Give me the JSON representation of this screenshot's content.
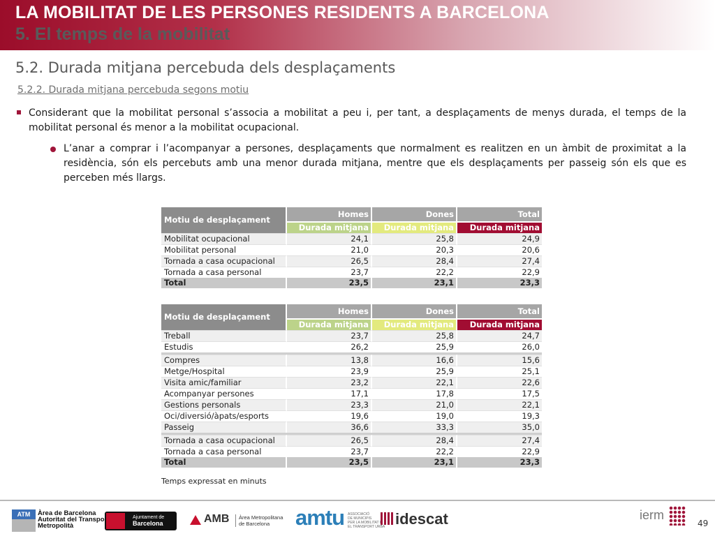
{
  "header": {
    "title_line1": "LA MOBILITAT DE LES PERSONES RESIDENTS A BARCELONA",
    "title_line2": "5. El temps de la mobilitat"
  },
  "section": {
    "title": "5.2. Durada mitjana percebuda dels desplaçaments",
    "subtitle": "5.2.2. Durada mitjana percebuda segons motiu"
  },
  "bullets": [
    "Considerant que la mobilitat personal s’associa a mobilitat a peu i, per tant, a desplaçaments de menys durada, el temps de la mobilitat personal és menor a la mobilitat ocupacional.",
    "L’anar a comprar i l’acompanyar a persones, desplaçaments que normalment es realitzen en un àmbit de proximitat a la residència, són els percebuts amb una menor durada mitjana, mentre que els desplaçaments per passeig són els que es perceben més llargs."
  ],
  "table_header": {
    "motiu": "Motiu de desplaçament",
    "homes": "Homes",
    "dones": "Dones",
    "total": "Total",
    "sub": "Durada mitjana"
  },
  "table1": {
    "rows": [
      {
        "label": "Mobilitat ocupacional",
        "homes": "24,1",
        "dones": "25,8",
        "total": "24,9"
      },
      {
        "label": "Mobilitat personal",
        "homes": "21,0",
        "dones": "20,3",
        "total": "20,6"
      },
      {
        "label": "Tornada a casa ocupacional",
        "homes": "26,5",
        "dones": "28,4",
        "total": "27,4"
      },
      {
        "label": "Tornada a casa personal",
        "homes": "23,7",
        "dones": "22,2",
        "total": "22,9"
      }
    ],
    "total": {
      "label": "Total",
      "homes": "23,5",
      "dones": "23,1",
      "total": "23,3"
    }
  },
  "table2": {
    "groups": [
      [
        {
          "label": "Treball",
          "homes": "23,7",
          "dones": "25,8",
          "total": "24,7"
        },
        {
          "label": "Estudis",
          "homes": "26,2",
          "dones": "25,9",
          "total": "26,0"
        }
      ],
      [
        {
          "label": "Compres",
          "homes": "13,8",
          "dones": "16,6",
          "total": "15,6"
        },
        {
          "label": "Metge/Hospital",
          "homes": "23,9",
          "dones": "25,9",
          "total": "25,1"
        },
        {
          "label": "Visita amic/familiar",
          "homes": "23,2",
          "dones": "22,1",
          "total": "22,6"
        },
        {
          "label": "Acompanyar persones",
          "homes": "17,1",
          "dones": "17,8",
          "total": "17,5"
        },
        {
          "label": "Gestions personals",
          "homes": "23,3",
          "dones": "21,0",
          "total": "22,1"
        },
        {
          "label": "Oci/diversió/àpats/esports",
          "homes": "19,6",
          "dones": "19,0",
          "total": "19,3"
        },
        {
          "label": "Passeig",
          "homes": "36,6",
          "dones": "33,3",
          "total": "35,0"
        }
      ],
      [
        {
          "label": "Tornada a casa ocupacional",
          "homes": "26,5",
          "dones": "28,4",
          "total": "27,4"
        },
        {
          "label": "Tornada a casa personal",
          "homes": "23,7",
          "dones": "22,2",
          "total": "22,9"
        }
      ]
    ],
    "total": {
      "label": "Total",
      "homes": "23,5",
      "dones": "23,1",
      "total": "23,3"
    }
  },
  "note": "Temps expressat en minuts",
  "footer": {
    "atm": {
      "box": "ATM",
      "line1": "Àrea de Barcelona",
      "line2": "Autoritat del Transport",
      "line3": "Metropolità"
    },
    "ajuntament": {
      "line1": "Ajuntament de",
      "line2": "Barcelona"
    },
    "amb": {
      "name": "AMB",
      "line1": "Àrea Metropolitana",
      "line2": "de Barcelona"
    },
    "amtu": {
      "name": "amtu",
      "line1": "ASSOCIACIÓ",
      "line2": "DE MUNICIPIS",
      "line3": "PER LA MOBILITAT I",
      "line4": "EL TRANSPORT URBÀ"
    },
    "idescat": "idescat",
    "iermb": "ierm"
  },
  "page_number": "49"
}
